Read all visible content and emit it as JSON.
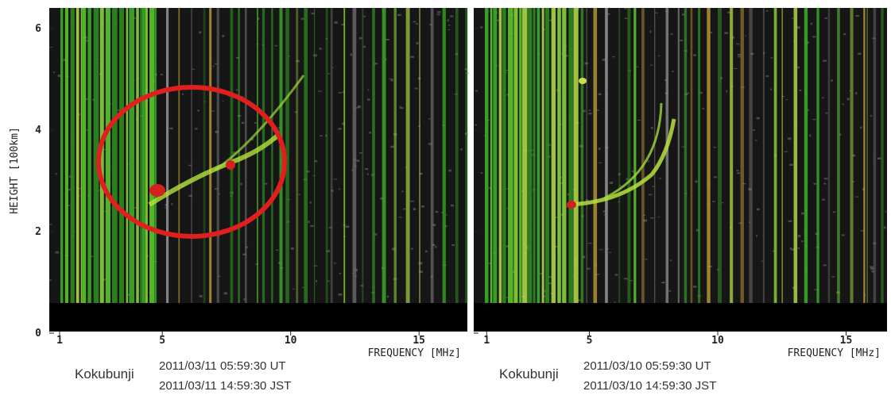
{
  "y_axis": {
    "label": "HEIGHT [100km]",
    "ticks": [
      0,
      2,
      4,
      6
    ]
  },
  "panels": [
    {
      "x_axis": {
        "label": "FREQUENCY [MHz]",
        "ticks": [
          1,
          5,
          10,
          15
        ]
      },
      "station": "Kokubunji",
      "time_ut": "2011/03/11 05:59:30 UT",
      "time_jst": "2011/03/11 14:59:30 JST"
    },
    {
      "x_axis": {
        "label": "FREQUENCY [MHz]",
        "ticks": [
          1,
          5,
          10,
          15
        ]
      },
      "station": "Kokubunji",
      "time_ut": "2011/03/10 05:59:30 UT",
      "time_jst": "2011/03/10 14:59:30 JST"
    }
  ]
}
